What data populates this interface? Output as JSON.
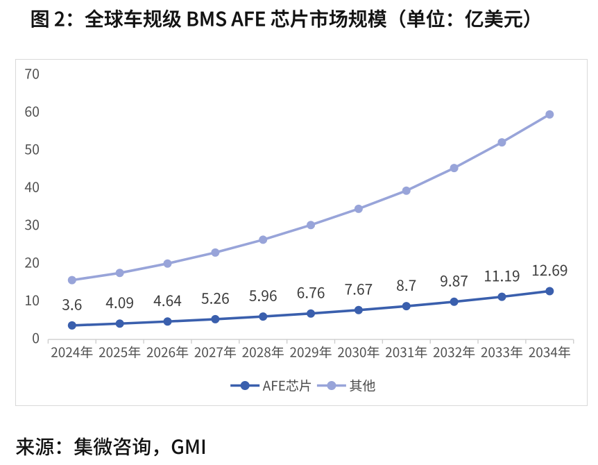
{
  "figure": {
    "title": "图 2：全球车规级 BMS AFE 芯片市场规模（单位：亿美元）",
    "source": "来源：集微咨询，GMI"
  },
  "chart_data": {
    "type": "line",
    "title": "图 2：全球车规级 BMS AFE 芯片市场规模（单位：亿美元）",
    "source": "来源：集微咨询，GMI",
    "unit": "亿美元",
    "categories": [
      "2024年",
      "2025年",
      "2026年",
      "2027年",
      "2028年",
      "2029年",
      "2030年",
      "2031年",
      "2032年",
      "2033年",
      "2034年"
    ],
    "series": [
      {
        "name": "AFE芯片",
        "color": "#3A5FAD",
        "values": [
          3.6,
          4.09,
          4.64,
          5.26,
          5.96,
          6.76,
          7.67,
          8.7,
          9.87,
          11.19,
          12.69
        ],
        "show_labels": true
      },
      {
        "name": "其他",
        "color": "#98A4D9",
        "values": [
          15.6,
          17.5,
          20,
          22.9,
          26.3,
          30.2,
          34.5,
          39.3,
          45.3,
          52.1,
          59.5
        ],
        "show_labels": false
      }
    ],
    "ylim": [
      0,
      70
    ],
    "yticks": [
      0,
      10,
      20,
      30,
      40,
      50,
      60,
      70
    ],
    "grid": false,
    "legend_position": "bottom"
  }
}
